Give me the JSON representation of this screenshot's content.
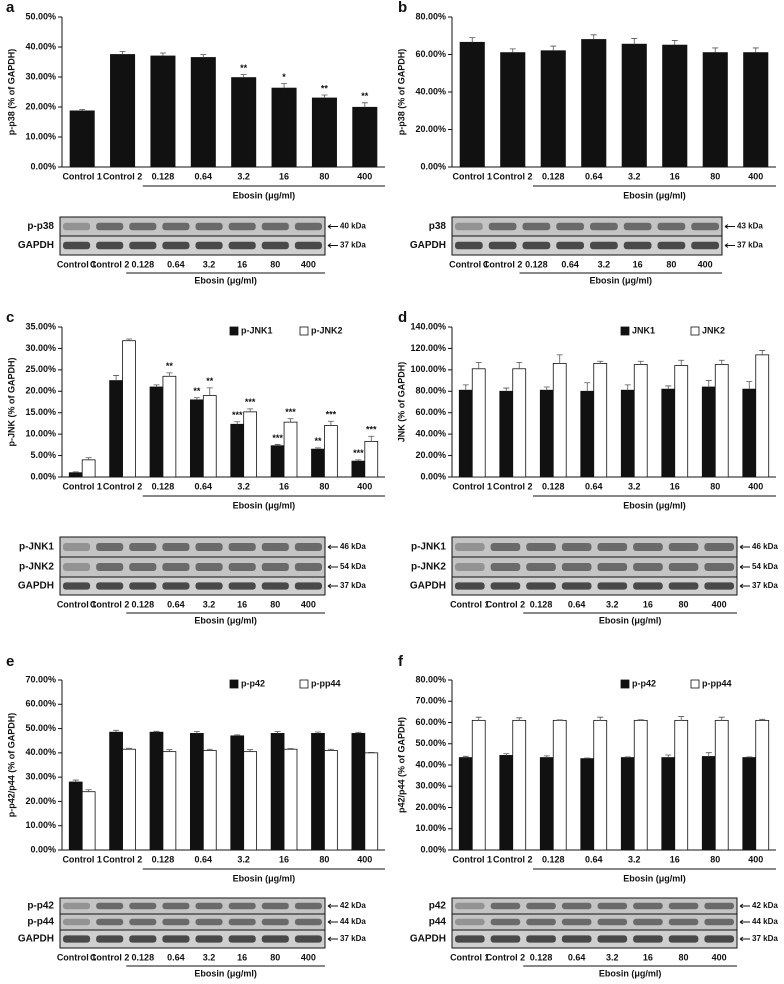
{
  "chart_data": [
    {
      "panel": "a",
      "type": "bar",
      "ylabel": "p-p38 (% of GAPDH)",
      "xlabel": "Ebosin (μg/ml)",
      "categories": [
        "Control 1",
        "Control 2",
        "0.128",
        "0.64",
        "3.2",
        "16",
        "80",
        "400"
      ],
      "values": [
        18.7,
        37.5,
        37,
        36.5,
        29.8,
        26.3,
        23,
        19.9
      ],
      "errors": [
        0.5,
        1,
        1,
        1,
        1,
        1.5,
        1,
        1.5
      ],
      "stars": [
        null,
        null,
        null,
        null,
        "**",
        "*",
        "**",
        "**"
      ],
      "color": "#111111",
      "ylim": [
        0,
        50
      ],
      "yticks": [
        {
          "value": 0,
          "label": "0.00%"
        },
        {
          "value": 10,
          "label": "10.00%"
        },
        {
          "value": 20,
          "label": "20.00%"
        },
        {
          "value": 30,
          "label": "30.00%"
        },
        {
          "value": 40,
          "label": "40.00%"
        },
        {
          "value": 50,
          "label": "50.00%"
        }
      ],
      "blot": {
        "rows": [
          "p-p38",
          "GAPDH"
        ],
        "kda": [
          "40 kDa",
          "37 kDa"
        ],
        "categories": [
          "Control 1",
          "Control 2",
          "0.128",
          "0.64",
          "3.2",
          "16",
          "80",
          "400"
        ],
        "xlabel": "Ebosin (μg/ml)"
      }
    },
    {
      "panel": "b",
      "type": "bar",
      "ylabel": "p-p38 (% of GAPDH)",
      "xlabel": "Ebosin (μg/ml)",
      "categories": [
        "Control 1",
        "Control 2",
        "0.128",
        "0.64",
        "3.2",
        "16",
        "80",
        "400"
      ],
      "values": [
        66.5,
        61,
        62,
        68,
        65.5,
        65,
        61,
        61
      ],
      "errors": [
        2.5,
        2,
        2.5,
        2.5,
        3,
        2.5,
        2.5,
        2.5
      ],
      "color": "#111111",
      "ylim": [
        0,
        80
      ],
      "yticks": [
        {
          "value": 0,
          "label": "0.00%"
        },
        {
          "value": 20,
          "label": "20.00%"
        },
        {
          "value": 40,
          "label": "40.00%"
        },
        {
          "value": 60,
          "label": "60.00%"
        },
        {
          "value": 80,
          "label": "80.00%"
        }
      ],
      "blot": {
        "rows": [
          "p38",
          "GAPDH"
        ],
        "kda": [
          "43 kDa",
          "37 kDa"
        ],
        "categories": [
          "Control 1",
          "Control 2",
          "0.128",
          "0.64",
          "3.2",
          "16",
          "80",
          "400"
        ],
        "xlabel": "Ebosin (μg/ml)"
      }
    },
    {
      "panel": "c",
      "type": "bar",
      "ylabel": "p-JNK (% of GAPDH)",
      "xlabel": "Ebosin (μg/ml)",
      "legend": "upper right",
      "categories": [
        "Control 1",
        "Control 2",
        "0.128",
        "0.64",
        "3.2",
        "16",
        "80",
        "400"
      ],
      "series": [
        {
          "name": "p-JNK1",
          "color": "#111111",
          "values": [
            1,
            22.5,
            21,
            18,
            12.3,
            7.3,
            6.5,
            3.7
          ],
          "errors": [
            0.2,
            1.2,
            0.5,
            0.5,
            0.6,
            0.3,
            0.3,
            0.3
          ],
          "stars": [
            null,
            null,
            null,
            "**",
            "***",
            "***",
            "**",
            "***"
          ]
        },
        {
          "name": "p-JNK2",
          "color": "#ffffff",
          "values": [
            4,
            31.8,
            23.5,
            19,
            15.2,
            12.8,
            12,
            8.3
          ],
          "errors": [
            0.5,
            0.4,
            0.8,
            1.8,
            0.7,
            0.8,
            1,
            1.2
          ],
          "stars": [
            null,
            null,
            "**",
            "**",
            "***",
            "***",
            "***",
            "***"
          ]
        }
      ],
      "ylim": [
        0,
        35
      ],
      "yticks": [
        {
          "value": 0,
          "label": "0.00%"
        },
        {
          "value": 5,
          "label": "5.00%"
        },
        {
          "value": 10,
          "label": "10.00%"
        },
        {
          "value": 15,
          "label": "15.00%"
        },
        {
          "value": 20,
          "label": "20.00%"
        },
        {
          "value": 25,
          "label": "25.00%"
        },
        {
          "value": 30,
          "label": "30.00%"
        },
        {
          "value": 35,
          "label": "35.00%"
        }
      ],
      "blot": {
        "rows": [
          "p-JNK1",
          "p-JNK2",
          "GAPDH"
        ],
        "kda": [
          "46 kDa",
          "54 kDa",
          "37 kDa"
        ],
        "categories": [
          "Control 1",
          "Control 2",
          "0.128",
          "0.64",
          "3.2",
          "16",
          "80",
          "400"
        ],
        "xlabel": "Ebosin (μg/ml)"
      }
    },
    {
      "panel": "d",
      "type": "bar",
      "ylabel": "JNK (% of GAPDH)",
      "xlabel": "Ebosin (μg/ml)",
      "legend": "upper right",
      "categories": [
        "Control 1",
        "Control 2",
        "0.128",
        "0.64",
        "3.2",
        "16",
        "80",
        "400"
      ],
      "series": [
        {
          "name": "JNK1",
          "color": "#111111",
          "values": [
            81,
            80,
            81,
            80,
            81,
            82,
            84,
            82
          ],
          "errors": [
            5,
            3,
            3,
            8,
            5,
            3,
            6,
            7
          ]
        },
        {
          "name": "JNK2",
          "color": "#ffffff",
          "values": [
            101,
            101,
            106,
            106,
            105,
            104,
            105,
            114
          ],
          "errors": [
            6,
            6,
            8,
            2,
            3,
            5,
            4,
            4
          ]
        }
      ],
      "ylim": [
        0,
        140
      ],
      "yticks": [
        {
          "value": 0,
          "label": "0.00%"
        },
        {
          "value": 20,
          "label": "20.00%"
        },
        {
          "value": 40,
          "label": "40.00%"
        },
        {
          "value": 60,
          "label": "60.00%"
        },
        {
          "value": 80,
          "label": "80.00%"
        },
        {
          "value": 100,
          "label": "100.00%"
        },
        {
          "value": 120,
          "label": "120.00%"
        },
        {
          "value": 140,
          "label": "140.00%"
        }
      ],
      "blot": {
        "rows": [
          "p-JNK1",
          "p-JNK2",
          "GAPDH"
        ],
        "kda": [
          "46 kDa",
          "54 kDa",
          "37 kDa"
        ],
        "categories": [
          "Control 1",
          "Control 2",
          "0.128",
          "0.64",
          "3.2",
          "16",
          "80",
          "400"
        ],
        "xlabel": "Ebosin (μg/ml)"
      }
    },
    {
      "panel": "e",
      "type": "bar",
      "ylabel": "p-p42/p44 (% of GAPDH)",
      "xlabel": "Ebosin (μg/ml)",
      "legend": "upper right",
      "categories": [
        "Control 1",
        "Control 2",
        "0.128",
        "0.64",
        "3.2",
        "16",
        "80",
        "400"
      ],
      "series": [
        {
          "name": "p-p42",
          "color": "#111111",
          "values": [
            28,
            48.5,
            48.5,
            48,
            47,
            48,
            48,
            48
          ],
          "errors": [
            0.8,
            0.8,
            0.4,
            0.8,
            0.4,
            0.8,
            0.6,
            0.5
          ]
        },
        {
          "name": "p-pp44",
          "color": "#ffffff",
          "values": [
            24,
            41.5,
            40.5,
            41,
            40.5,
            41.5,
            41,
            40
          ],
          "errors": [
            0.8,
            0.4,
            0.8,
            0.5,
            0.8,
            0.3,
            0.5,
            0.2
          ]
        }
      ],
      "ylim": [
        0,
        70
      ],
      "yticks": [
        {
          "value": 0,
          "label": "0.00%"
        },
        {
          "value": 10,
          "label": "10.00%"
        },
        {
          "value": 20,
          "label": "20.00%"
        },
        {
          "value": 30,
          "label": "30.00%"
        },
        {
          "value": 40,
          "label": "40.00%"
        },
        {
          "value": 50,
          "label": "50.00%"
        },
        {
          "value": 60,
          "label": "60.00%"
        },
        {
          "value": 70,
          "label": "70.00%"
        }
      ],
      "blot": {
        "rows": [
          "p-p42",
          "p-p44",
          "GAPDH"
        ],
        "kda": [
          "42 kDa",
          "44 kDa",
          "37 kDa"
        ],
        "categories": [
          "Control 1",
          "Control 2",
          "0.128",
          "0.64",
          "3.2",
          "16",
          "80",
          "400"
        ],
        "xlabel": "Ebosin (μg/ml)"
      }
    },
    {
      "panel": "f",
      "type": "bar",
      "ylabel": "p42/p44 (% of GAPDH)",
      "xlabel": "Ebosin (μg/ml)",
      "legend": "upper right",
      "categories": [
        "Control 1",
        "Control 2",
        "0.128",
        "0.64",
        "3.2",
        "16",
        "80",
        "400"
      ],
      "series": [
        {
          "name": "p-p42",
          "color": "#111111",
          "values": [
            43.5,
            44.5,
            43.5,
            43,
            43.5,
            43.5,
            44,
            43.5
          ],
          "errors": [
            0.6,
            0.8,
            0.8,
            0.3,
            0.3,
            1.2,
            1.8,
            0.3
          ]
        },
        {
          "name": "p-pp44",
          "color": "#ffffff",
          "values": [
            61,
            61,
            61,
            61,
            61,
            61,
            61,
            61
          ],
          "errors": [
            1.5,
            1.2,
            0.2,
            1.5,
            0.3,
            1.8,
            1.5,
            0.5
          ]
        }
      ],
      "ylim": [
        0,
        80
      ],
      "yticks": [
        {
          "value": 0,
          "label": "0.00%"
        },
        {
          "value": 10,
          "label": "10.00%"
        },
        {
          "value": 20,
          "label": "20.00%"
        },
        {
          "value": 30,
          "label": "30.00%"
        },
        {
          "value": 40,
          "label": "40.00%"
        },
        {
          "value": 50,
          "label": "50.00%"
        },
        {
          "value": 60,
          "label": "60.00%"
        },
        {
          "value": 70,
          "label": "70.00%"
        },
        {
          "value": 80,
          "label": "80.00%"
        }
      ],
      "blot": {
        "rows": [
          "p42",
          "p44",
          "GAPDH"
        ],
        "kda": [
          "42 kDa",
          "44 kDa",
          "37 kDa"
        ],
        "categories": [
          "Control 1",
          "Control 2",
          "0.128",
          "0.64",
          "3.2",
          "16",
          "80",
          "400"
        ],
        "xlabel": "Ebosin (μg/ml)"
      }
    }
  ]
}
